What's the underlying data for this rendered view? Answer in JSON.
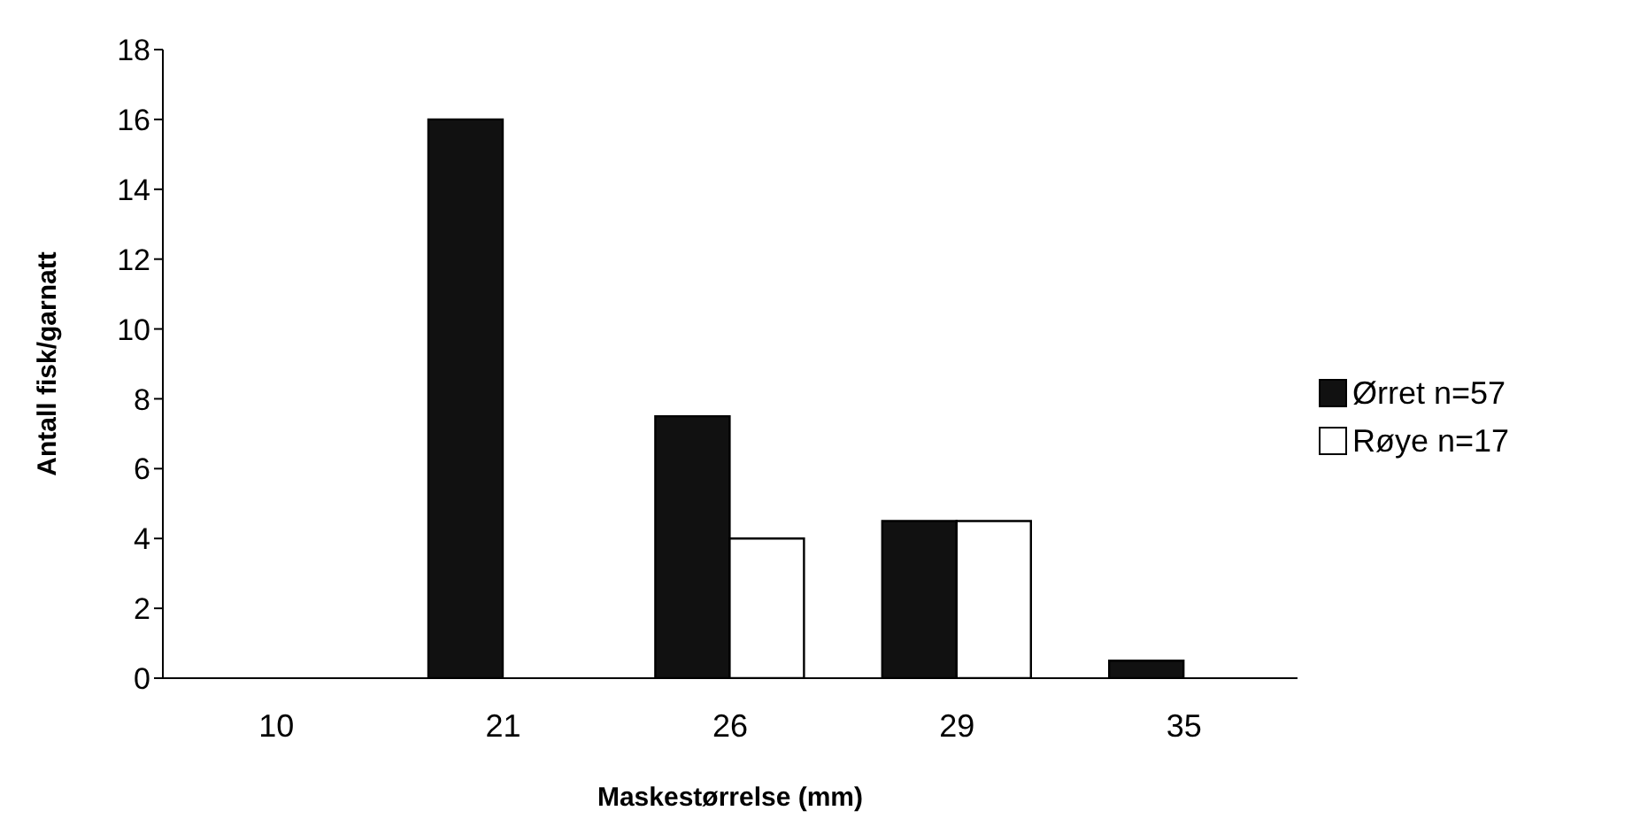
{
  "chart_data": {
    "type": "bar",
    "xlabel": "Maskestørrelse (mm)",
    "ylabel": "Antall fisk/garnatt",
    "categories": [
      "10",
      "21",
      "26",
      "29",
      "35"
    ],
    "series": [
      {
        "name": "Ørret n=57",
        "color": "#111111",
        "values": [
          0,
          16,
          7.5,
          4.5,
          0.5
        ]
      },
      {
        "name": "Røye n=17",
        "color": "#ffffff",
        "values": [
          0,
          0,
          4,
          4.5,
          0
        ]
      }
    ],
    "ylim": [
      0,
      18
    ],
    "yticks": [
      0,
      2,
      4,
      6,
      8,
      10,
      12,
      14,
      16,
      18
    ],
    "grid": false,
    "legend": "right"
  }
}
